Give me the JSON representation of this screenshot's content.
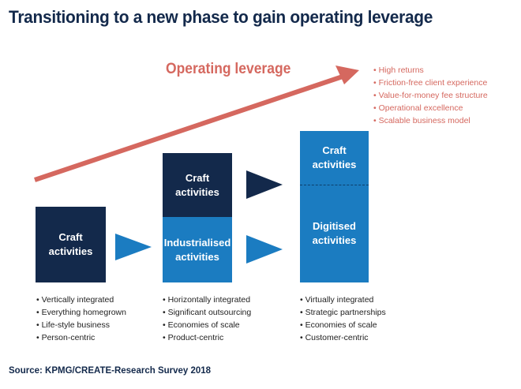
{
  "title": "Transitioning to a new phase to gain operating leverage",
  "operating_leverage": {
    "label": "Operating leverage",
    "benefits": [
      "High returns",
      "Friction-free client experience",
      "Value-for-money fee structure",
      "Operational excellence",
      "Scalable business model"
    ]
  },
  "phases": [
    {
      "boxes": [
        "Craft activities"
      ],
      "bullets": [
        "Vertically integrated",
        "Everything homegrown",
        "Life-style business",
        "Person-centric"
      ]
    },
    {
      "boxes": [
        "Craft activities",
        "Industrialised activities"
      ],
      "bullets": [
        "Horizontally integrated",
        "Significant outsourcing",
        "Economies of scale",
        "Product-centric"
      ]
    },
    {
      "boxes": [
        "Craft activities",
        "Digitised activities"
      ],
      "bullets": [
        "Virtually integrated",
        "Strategic partnerships",
        "Economies of scale",
        "Customer-centric"
      ]
    }
  ],
  "source": "Source: KPMG/CREATE-Research Survey 2018",
  "colors": {
    "navy": "#13294b",
    "blue": "#1b7cc1",
    "accent": "#d5685f"
  }
}
